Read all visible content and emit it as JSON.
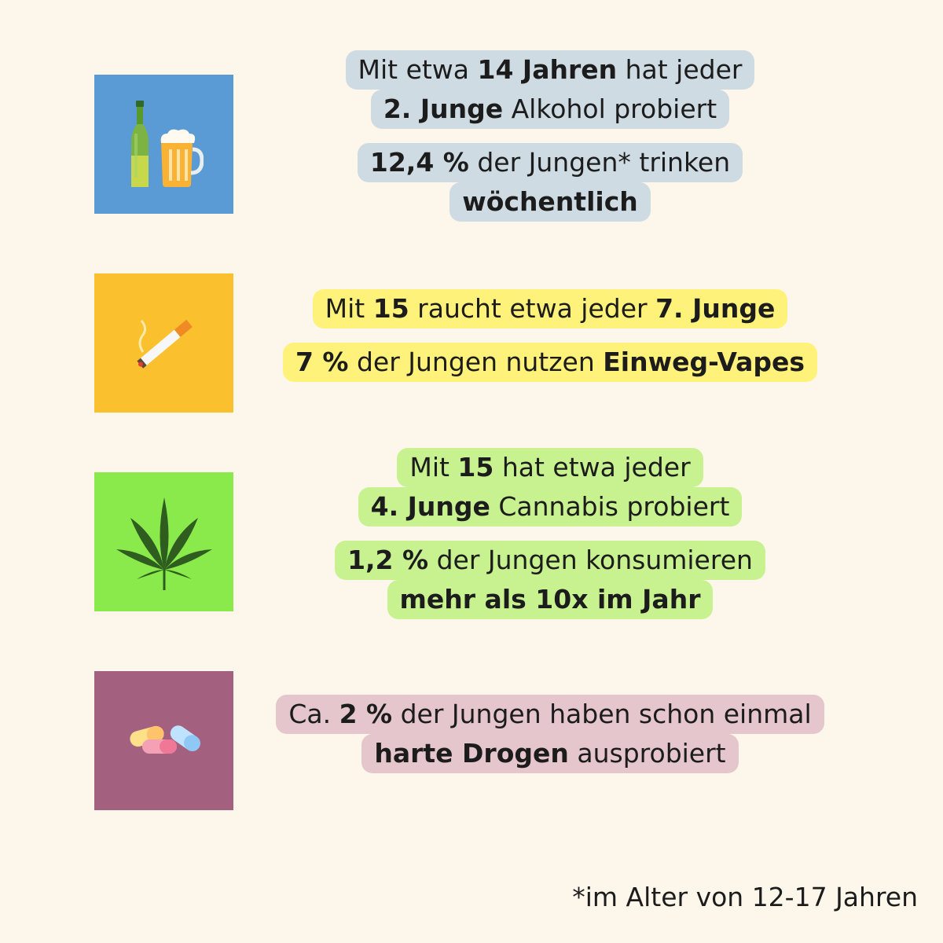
{
  "colors": {
    "background": "#fdf6ea",
    "alcohol_box": "#5b9bd5",
    "alcohol_pill": "#cfdbe3",
    "tobacco_box": "#fbc02d",
    "tobacco_pill": "#fff27a",
    "cannabis_box": "#8aea4c",
    "cannabis_pill": "#c8f28f",
    "drugs_box": "#a3607f",
    "drugs_pill": "#e5c6cc"
  },
  "sections": [
    {
      "icon": "beer-bottle-and-mug-icon",
      "lines": [
        {
          "parts": [
            "Mit etwa ",
            "14 Jahren",
            " hat jeder"
          ]
        },
        {
          "parts": [
            "2. Junge",
            " Alkohol probiert"
          ]
        },
        {
          "parts": [
            "12,4 %",
            " der Jungen* trinken"
          ]
        },
        {
          "parts": [
            "wöchentlich"
          ]
        }
      ]
    },
    {
      "icon": "cigarette-icon",
      "lines": [
        {
          "parts": [
            "Mit ",
            "15",
            " raucht etwa jeder ",
            "7. Junge"
          ]
        },
        {
          "parts": [
            "7 %",
            " der Jungen nutzen ",
            "Einweg-Vapes"
          ]
        }
      ]
    },
    {
      "icon": "cannabis-leaf-icon",
      "lines": [
        {
          "parts": [
            "Mit ",
            "15",
            " hat etwa jeder"
          ]
        },
        {
          "parts": [
            "4. Junge",
            " Cannabis probiert"
          ]
        },
        {
          "parts": [
            "1,2 %",
            " der Jungen konsumieren"
          ]
        },
        {
          "parts": [
            "mehr als 10x im Jahr"
          ]
        }
      ]
    },
    {
      "icon": "pills-icon",
      "lines": [
        {
          "parts": [
            "Ca. ",
            "2 %",
            " der Jungen haben schon einmal"
          ]
        },
        {
          "parts": [
            "harte Drogen",
            " ausprobiert"
          ]
        }
      ]
    }
  ],
  "footnote": "*im Alter von 12-17 Jahren"
}
